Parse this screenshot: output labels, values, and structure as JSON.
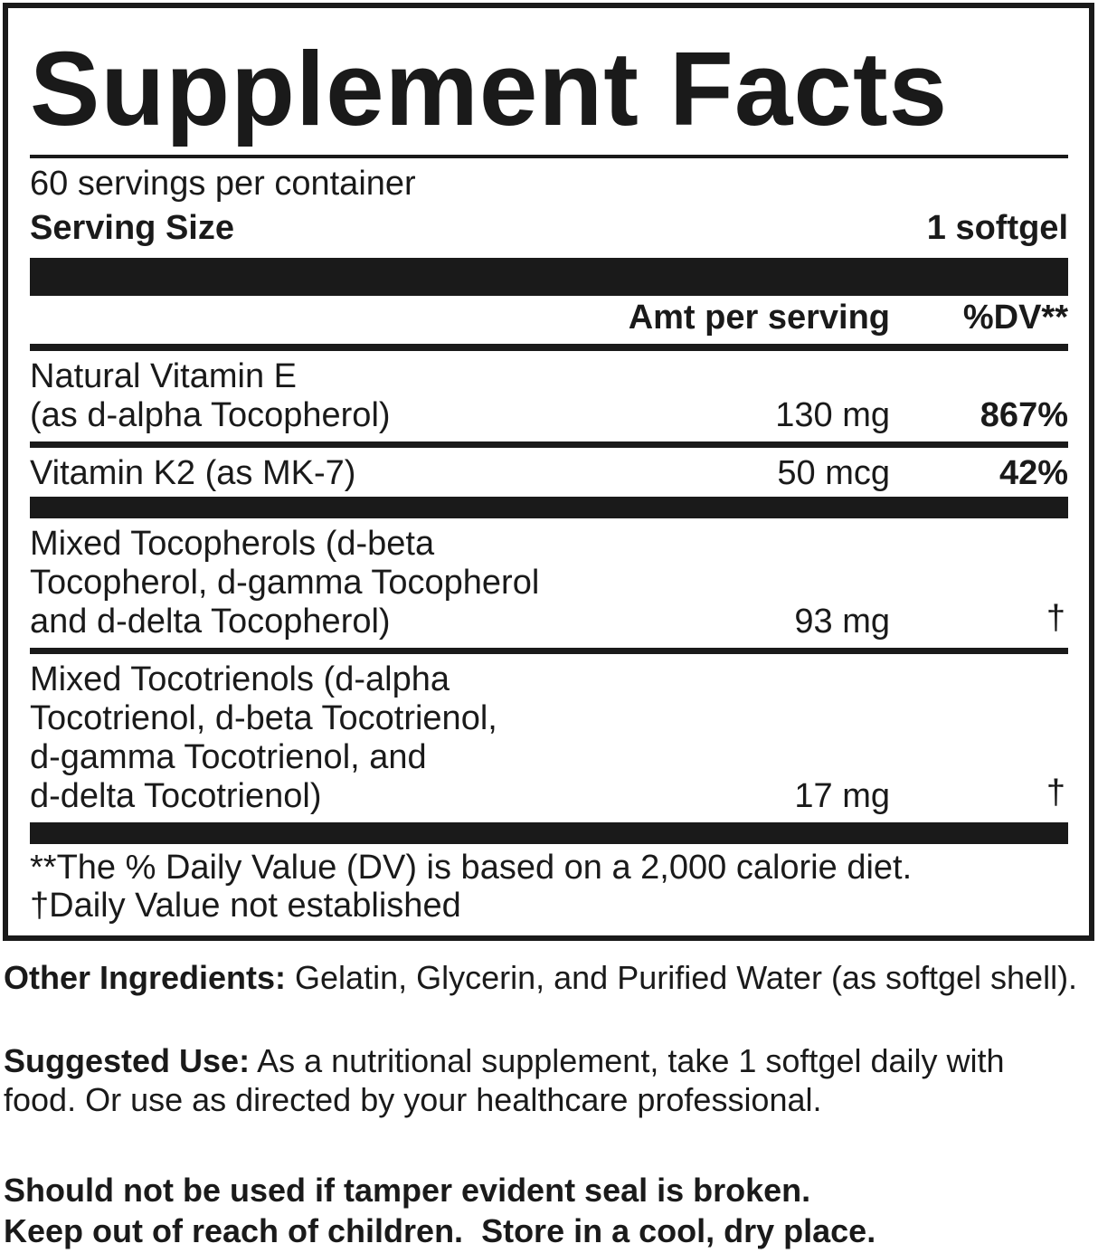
{
  "title": "Supplement Facts",
  "servings_per_container": "60 servings per container",
  "serving_size_label": "Serving Size",
  "serving_size_value": "1 softgel",
  "header": {
    "amount": "Amt per serving",
    "dv": "%DV**"
  },
  "rows": [
    {
      "lines": [
        "Natural Vitamin E",
        "(as d-alpha Tocopherol)"
      ],
      "amount": "130 mg",
      "dv": "867%"
    },
    {
      "lines": [
        "Vitamin K2 (as MK-7)"
      ],
      "amount": "50 mcg",
      "dv": "42%"
    },
    {
      "lines": [
        "Mixed Tocopherols (d-beta",
        "Tocopherol, d-gamma Tocopherol",
        "and d-delta Tocopherol)"
      ],
      "amount": "93 mg",
      "dv": "†"
    },
    {
      "lines": [
        "Mixed Tocotrienols (d-alpha",
        "Tocotrienol, d-beta Tocotrienol,",
        "d-gamma Tocotrienol, and",
        "d-delta Tocotrienol)"
      ],
      "amount": "17 mg",
      "dv": "†"
    }
  ],
  "footnotes": [
    "**The % Daily Value (DV) is based on a 2,000 calorie diet.",
    "†Daily Value not established"
  ],
  "other_ingredients": {
    "label": "Other Ingredients:",
    "text": " Gelatin, Glycerin, and Purified Water (as softgel shell)."
  },
  "suggested_use": {
    "label": "Suggested Use:",
    "text": " As a nutritional supplement, take 1 softgel daily with food. Or use as directed by your healthcare professional."
  },
  "warnings": [
    "Should not be used if tamper evident seal is broken.",
    "Keep out of reach of children.  Store in a cool, dry place."
  ]
}
